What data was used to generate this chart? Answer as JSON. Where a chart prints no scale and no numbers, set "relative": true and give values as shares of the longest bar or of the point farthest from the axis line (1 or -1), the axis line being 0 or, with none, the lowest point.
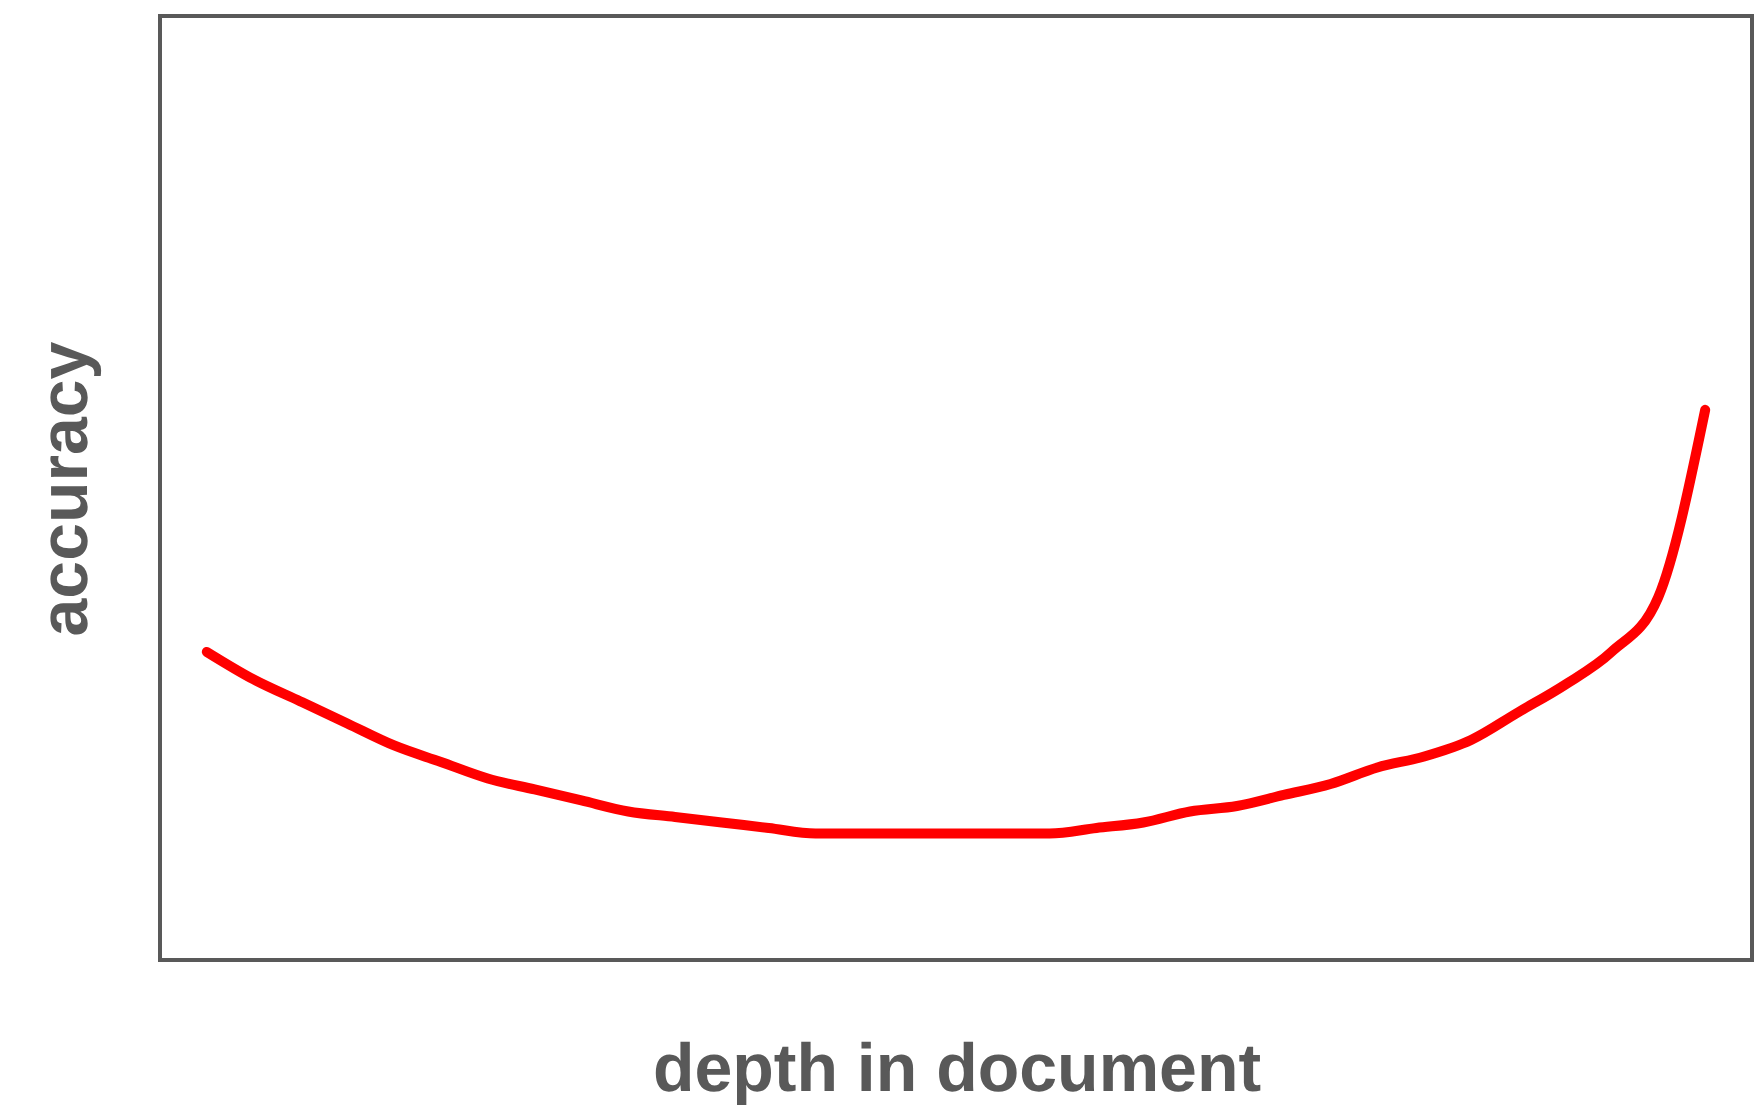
{
  "chart_data": {
    "type": "line",
    "xlabel": "depth in document",
    "ylabel": "accuracy",
    "relative": true,
    "grid": false,
    "tick_labels": false,
    "marker": "none",
    "line_style": "solid",
    "categories": [
      null,
      null,
      null,
      null,
      null,
      null,
      null,
      null,
      null,
      null,
      null,
      null,
      null,
      null,
      null,
      null,
      null,
      null,
      null,
      null,
      null,
      null,
      null,
      null,
      null,
      null,
      null,
      null,
      null,
      null,
      null,
      null,
      null
    ],
    "series": [
      {
        "color": "#ff0000",
        "values": [
          0.56,
          0.51,
          0.47,
          0.43,
          0.39,
          0.36,
          0.33,
          0.31,
          0.29,
          0.27,
          0.26,
          0.25,
          0.24,
          0.23,
          0.23,
          0.23,
          0.23,
          0.23,
          0.23,
          0.24,
          0.25,
          0.27,
          0.28,
          0.3,
          0.32,
          0.35,
          0.37,
          0.4,
          0.45,
          0.5,
          0.56,
          0.66,
          1
        ]
      }
    ]
  }
}
